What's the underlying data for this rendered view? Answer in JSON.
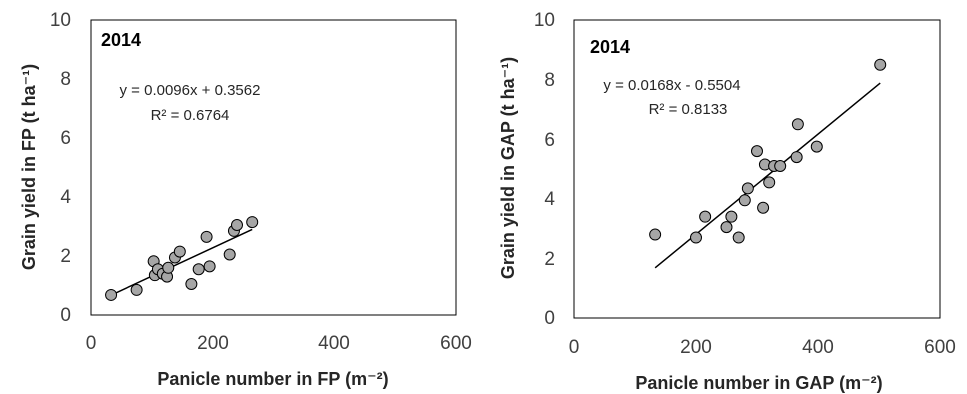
{
  "chart_data": [
    {
      "type": "scatter",
      "title": "",
      "annotation_year": "2014",
      "equation": "y = 0.0096x + 0.3562",
      "r2": "R² = 0.6764",
      "xlabel": "Panicle number in FP (m⁻²)",
      "ylabel": "Grain yield in FP (t ha⁻¹)",
      "xlim": [
        0,
        600
      ],
      "ylim": [
        0,
        10
      ],
      "xticks": [
        "0",
        "200",
        "400",
        "600"
      ],
      "yticks": [
        "0",
        "2",
        "4",
        "6",
        "8",
        "10"
      ],
      "grid": false,
      "marker_color": "#a6a6a6",
      "trendline": {
        "slope": 0.0096,
        "intercept": 0.3562,
        "x_range": [
          33,
          265
        ]
      },
      "points": [
        {
          "x": 33,
          "y": 0.68
        },
        {
          "x": 75,
          "y": 0.85
        },
        {
          "x": 103,
          "y": 1.82
        },
        {
          "x": 105,
          "y": 1.35
        },
        {
          "x": 110,
          "y": 1.55
        },
        {
          "x": 118,
          "y": 1.4
        },
        {
          "x": 125,
          "y": 1.3
        },
        {
          "x": 127,
          "y": 1.6
        },
        {
          "x": 138,
          "y": 1.95
        },
        {
          "x": 146,
          "y": 2.15
        },
        {
          "x": 165,
          "y": 1.05
        },
        {
          "x": 177,
          "y": 1.55
        },
        {
          "x": 190,
          "y": 2.65
        },
        {
          "x": 195,
          "y": 1.65
        },
        {
          "x": 228,
          "y": 2.05
        },
        {
          "x": 235,
          "y": 2.85
        },
        {
          "x": 240,
          "y": 3.05
        },
        {
          "x": 265,
          "y": 3.15
        }
      ]
    },
    {
      "type": "scatter",
      "title": "",
      "annotation_year": "2014",
      "equation": "y = 0.0168x - 0.5504",
      "r2": "R² = 0.8133",
      "xlabel": "Panicle number in GAP (m⁻²)",
      "ylabel": "Grain yield in GAP (t ha⁻¹)",
      "xlim": [
        0,
        600
      ],
      "ylim": [
        0,
        10
      ],
      "xticks": [
        "0",
        "200",
        "400",
        "600"
      ],
      "yticks": [
        "0",
        "2",
        "4",
        "6",
        "8",
        "10"
      ],
      "grid": false,
      "marker_color": "#a6a6a6",
      "trendline": {
        "slope": 0.0168,
        "intercept": -0.5504,
        "x_range": [
          133,
          502
        ]
      },
      "points": [
        {
          "x": 133,
          "y": 2.8
        },
        {
          "x": 200,
          "y": 2.7
        },
        {
          "x": 215,
          "y": 3.4
        },
        {
          "x": 250,
          "y": 3.05
        },
        {
          "x": 258,
          "y": 3.4
        },
        {
          "x": 270,
          "y": 2.7
        },
        {
          "x": 280,
          "y": 3.95
        },
        {
          "x": 285,
          "y": 4.35
        },
        {
          "x": 300,
          "y": 5.6
        },
        {
          "x": 310,
          "y": 3.7
        },
        {
          "x": 313,
          "y": 5.15
        },
        {
          "x": 320,
          "y": 4.55
        },
        {
          "x": 328,
          "y": 5.1
        },
        {
          "x": 338,
          "y": 5.1
        },
        {
          "x": 365,
          "y": 5.4
        },
        {
          "x": 367,
          "y": 6.5
        },
        {
          "x": 398,
          "y": 5.75
        },
        {
          "x": 502,
          "y": 8.5
        }
      ]
    }
  ]
}
